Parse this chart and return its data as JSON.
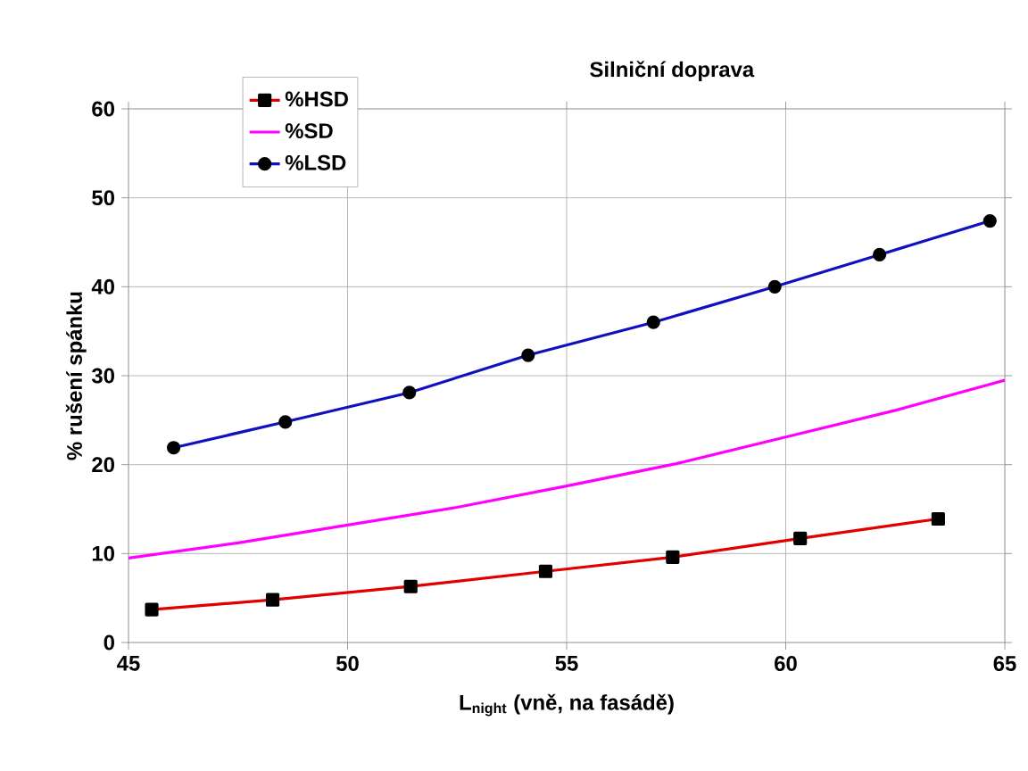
{
  "chart_data": {
    "type": "line",
    "title": "Silniční doprava",
    "xlabel": "L$_{night}$ (vně, na fasádě)",
    "ylabel": "% rušení spánku",
    "series": [
      {
        "name": "%HSD",
        "color": "#e00000",
        "marker": "square",
        "x": [
          45.53,
          48.29,
          51.44,
          54.52,
          57.42,
          60.33,
          63.48
        ],
        "values": [
          3.7,
          4.8,
          6.3,
          8.0,
          9.6,
          11.7,
          13.9
        ]
      },
      {
        "name": "%SD",
        "color": "#ff00ff",
        "marker": "none",
        "x": [
          45,
          47.5,
          50,
          52.5,
          55,
          57.5,
          60,
          62.5,
          65
        ],
        "values": [
          9.5,
          11.2,
          13.2,
          15.2,
          17.6,
          20.1,
          23.1,
          26.1,
          29.5
        ]
      },
      {
        "name": "%LSD",
        "color": "#1010c0",
        "marker": "circle",
        "x": [
          46.03,
          48.58,
          51.41,
          54.12,
          56.98,
          59.75,
          62.14,
          64.66
        ],
        "values": [
          21.9,
          24.8,
          28.1,
          32.3,
          36.0,
          40.0,
          43.6,
          47.4
        ]
      }
    ],
    "xlim": [
      45,
      65
    ],
    "xticks": [
      45,
      50,
      55,
      60,
      65
    ],
    "ylim": [
      0,
      60
    ],
    "yticks": [
      0,
      10,
      20,
      30,
      40,
      50,
      60
    ],
    "grid": true,
    "legend": "top left"
  }
}
